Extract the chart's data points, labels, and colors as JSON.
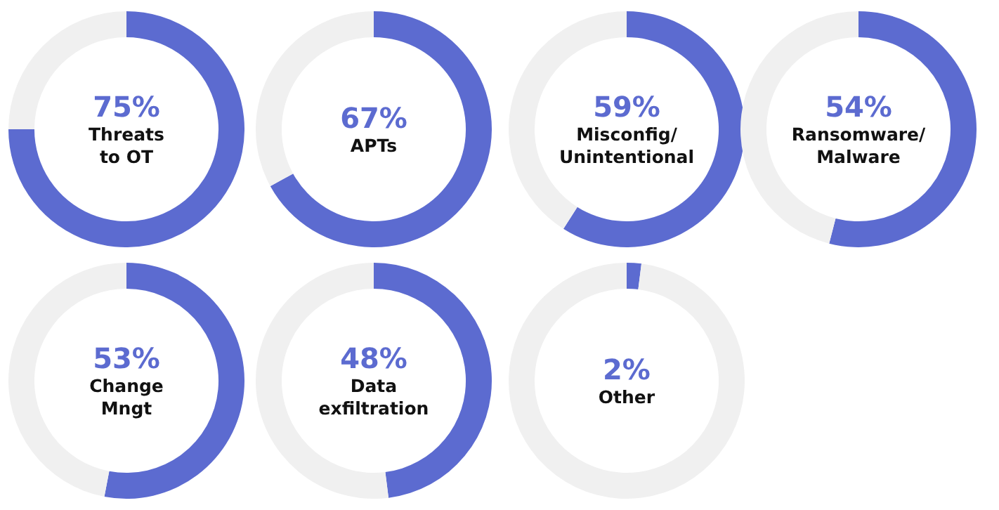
{
  "chart_data": [
    {
      "type": "donut",
      "title": "Threats\nto OT",
      "categories": [
        null,
        null
      ],
      "values": [
        75,
        25
      ],
      "colors": [
        "#5c6bd0",
        "#f0f0f0"
      ],
      "value_labels": [
        "75%",
        null
      ],
      "legend": false
    },
    {
      "type": "donut",
      "title": "APTs",
      "categories": [
        null,
        null
      ],
      "values": [
        67,
        33
      ],
      "colors": [
        "#5c6bd0",
        "#f0f0f0"
      ],
      "value_labels": [
        "67%",
        null
      ],
      "legend": false
    },
    {
      "type": "donut",
      "title": "Misconfig/\nUnintentional",
      "categories": [
        null,
        null
      ],
      "values": [
        59,
        41
      ],
      "colors": [
        "#5c6bd0",
        "#f0f0f0"
      ],
      "value_labels": [
        "59%",
        null
      ],
      "legend": false
    },
    {
      "type": "donut",
      "title": "Ransomware/\nMalware",
      "categories": [
        null,
        null
      ],
      "values": [
        54,
        46
      ],
      "colors": [
        "#5c6bd0",
        "#f0f0f0"
      ],
      "value_labels": [
        "54%",
        null
      ],
      "legend": false
    },
    {
      "type": "donut",
      "title": "Change\nMngt",
      "categories": [
        null,
        null
      ],
      "values": [
        53,
        47
      ],
      "colors": [
        "#5c6bd0",
        "#f0f0f0"
      ],
      "value_labels": [
        "53%",
        null
      ],
      "legend": false
    },
    {
      "type": "donut",
      "title": "Data\nexfiltration",
      "categories": [
        null,
        null
      ],
      "values": [
        48,
        52
      ],
      "colors": [
        "#5c6bd0",
        "#f0f0f0"
      ],
      "value_labels": [
        "48%",
        null
      ],
      "legend": false
    },
    {
      "type": "donut",
      "title": "Other",
      "categories": [
        null,
        null
      ],
      "values": [
        2,
        98
      ],
      "colors": [
        "#5c6bd0",
        "#f0f0f0"
      ],
      "value_labels": [
        "2%",
        null
      ],
      "legend": false
    }
  ]
}
